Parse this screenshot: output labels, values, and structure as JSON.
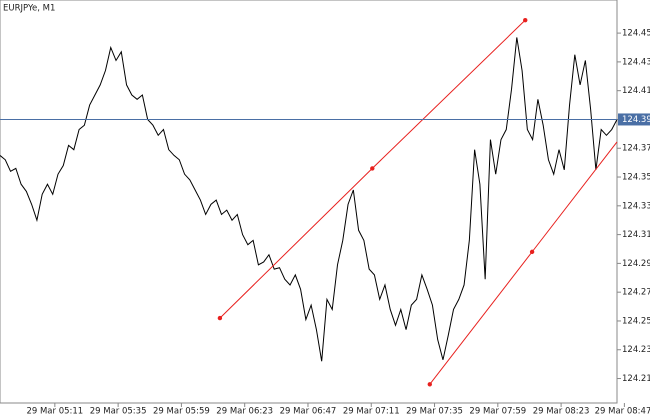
{
  "chart_data": {
    "type": "line",
    "title": "EURJPYe, M1",
    "series": [
      {
        "name": "EURJPYe",
        "color": "#000000",
        "values": [
          124.365,
          124.362,
          124.354,
          124.356,
          124.345,
          124.34,
          124.331,
          124.32,
          124.338,
          124.345,
          124.338,
          124.352,
          124.358,
          124.372,
          124.369,
          124.383,
          124.386,
          124.4,
          124.407,
          124.414,
          124.424,
          124.44,
          124.431,
          124.437,
          124.414,
          124.407,
          124.404,
          124.407,
          124.39,
          124.386,
          124.379,
          124.383,
          124.369,
          124.365,
          124.362,
          124.352,
          124.348,
          124.341,
          124.334,
          124.324,
          124.331,
          124.334,
          124.324,
          124.327,
          124.32,
          124.324,
          124.31,
          124.303,
          124.306,
          124.289,
          124.291,
          124.296,
          124.286,
          124.287,
          124.279,
          124.275,
          124.282,
          124.272,
          124.251,
          124.261,
          124.244,
          124.222,
          124.265,
          124.258,
          124.289,
          124.306,
          124.331,
          124.341,
          124.313,
          124.306,
          124.286,
          124.282,
          124.265,
          124.275,
          124.258,
          124.247,
          124.258,
          124.244,
          124.261,
          124.265,
          124.282,
          124.272,
          124.261,
          124.237,
          124.223,
          124.24,
          124.258,
          124.265,
          124.275,
          124.306,
          124.369,
          124.345,
          124.279,
          124.376,
          124.352,
          124.376,
          124.383,
          124.411,
          124.447,
          124.424,
          124.383,
          124.376,
          124.404,
          124.386,
          124.362,
          124.352,
          124.369,
          124.355,
          124.4,
          124.435,
          124.414,
          124.431,
          124.397,
          124.355,
          124.383,
          124.379,
          124.383,
          124.39
        ]
      }
    ],
    "xlim": [
      0,
      117
    ],
    "xticks": [
      {
        "value": 10.4,
        "label": "29 Mar 05:11"
      },
      {
        "value": 22.4,
        "label": "29 Mar 05:35"
      },
      {
        "value": 34.4,
        "label": "29 Mar 05:59"
      },
      {
        "value": 46.4,
        "label": "29 Mar 06:23"
      },
      {
        "value": 58.4,
        "label": "29 Mar 06:47"
      },
      {
        "value": 70.4,
        "label": "29 Mar 07:11"
      },
      {
        "value": 82.4,
        "label": "29 Mar 07:35"
      },
      {
        "value": 94.4,
        "label": "29 Mar 07:59"
      },
      {
        "value": 106.4,
        "label": "29 Mar 08:23"
      },
      {
        "value": 118.4,
        "label": "29 Mar 08:47"
      }
    ],
    "ylim": [
      124.193,
      124.473
    ],
    "yticks": [
      {
        "value": 124.21,
        "label": "124.210"
      },
      {
        "value": 124.23,
        "label": "124.230"
      },
      {
        "value": 124.25,
        "label": "124.250"
      },
      {
        "value": 124.27,
        "label": "124.270"
      },
      {
        "value": 124.29,
        "label": "124.290"
      },
      {
        "value": 124.31,
        "label": "124.310"
      },
      {
        "value": 124.33,
        "label": "124.330"
      },
      {
        "value": 124.35,
        "label": "124.350"
      },
      {
        "value": 124.37,
        "label": "124.370"
      },
      {
        "value": 124.39,
        "label": "124.390"
      },
      {
        "value": 124.41,
        "label": "124.410"
      },
      {
        "value": 124.43,
        "label": "124.430"
      },
      {
        "value": 124.45,
        "label": "124.450"
      }
    ],
    "current_price": {
      "value": 124.39,
      "label": "124.390",
      "color": "#4a6fa5"
    },
    "trendlines": [
      {
        "color": "#e8201e",
        "x": [
          41.7,
          70.6,
          99.6
        ],
        "values": [
          124.252,
          124.356,
          124.459
        ],
        "ray": false
      },
      {
        "color": "#e8201e",
        "x": [
          81.5,
          100.9
        ],
        "values": [
          124.206,
          124.298
        ],
        "ray": true
      }
    ]
  }
}
